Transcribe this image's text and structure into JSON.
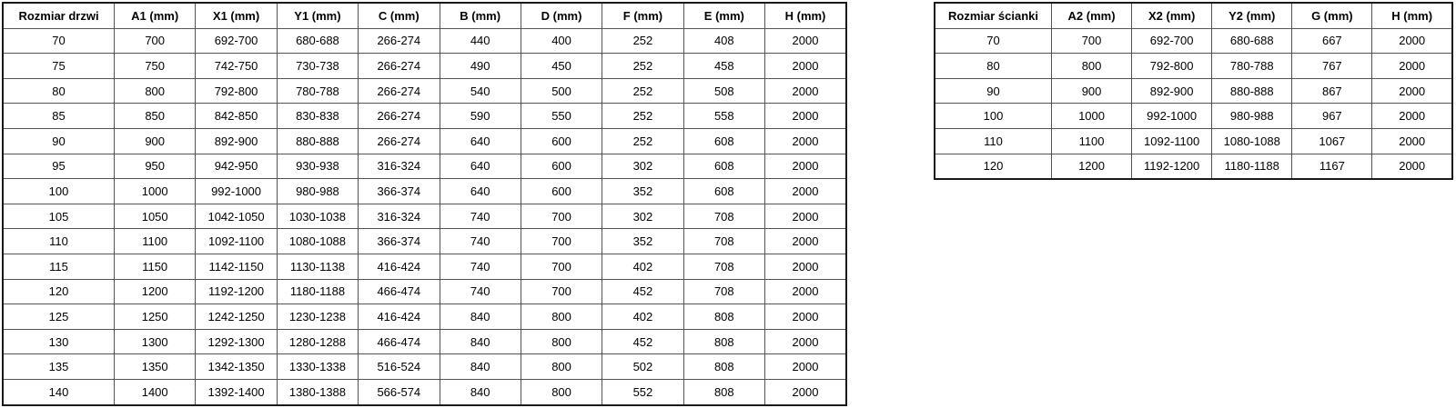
{
  "door_table": {
    "name": "door-size-table",
    "headers": [
      "Rozmiar drzwi",
      "A1 (mm)",
      "X1 (mm)",
      "Y1 (mm)",
      "C (mm)",
      "B (mm)",
      "D (mm)",
      "F (mm)",
      "E (mm)",
      "H (mm)"
    ],
    "rows": [
      [
        "70",
        "700",
        "692-700",
        "680-688",
        "266-274",
        "440",
        "400",
        "252",
        "408",
        "2000"
      ],
      [
        "75",
        "750",
        "742-750",
        "730-738",
        "266-274",
        "490",
        "450",
        "252",
        "458",
        "2000"
      ],
      [
        "80",
        "800",
        "792-800",
        "780-788",
        "266-274",
        "540",
        "500",
        "252",
        "508",
        "2000"
      ],
      [
        "85",
        "850",
        "842-850",
        "830-838",
        "266-274",
        "590",
        "550",
        "252",
        "558",
        "2000"
      ],
      [
        "90",
        "900",
        "892-900",
        "880-888",
        "266-274",
        "640",
        "600",
        "252",
        "608",
        "2000"
      ],
      [
        "95",
        "950",
        "942-950",
        "930-938",
        "316-324",
        "640",
        "600",
        "302",
        "608",
        "2000"
      ],
      [
        "100",
        "1000",
        "992-1000",
        "980-988",
        "366-374",
        "640",
        "600",
        "352",
        "608",
        "2000"
      ],
      [
        "105",
        "1050",
        "1042-1050",
        "1030-1038",
        "316-324",
        "740",
        "700",
        "302",
        "708",
        "2000"
      ],
      [
        "110",
        "1100",
        "1092-1100",
        "1080-1088",
        "366-374",
        "740",
        "700",
        "352",
        "708",
        "2000"
      ],
      [
        "115",
        "1150",
        "1142-1150",
        "1130-1138",
        "416-424",
        "740",
        "700",
        "402",
        "708",
        "2000"
      ],
      [
        "120",
        "1200",
        "1192-1200",
        "1180-1188",
        "466-474",
        "740",
        "700",
        "452",
        "708",
        "2000"
      ],
      [
        "125",
        "1250",
        "1242-1250",
        "1230-1238",
        "416-424",
        "840",
        "800",
        "402",
        "808",
        "2000"
      ],
      [
        "130",
        "1300",
        "1292-1300",
        "1280-1288",
        "466-474",
        "840",
        "800",
        "452",
        "808",
        "2000"
      ],
      [
        "135",
        "1350",
        "1342-1350",
        "1330-1338",
        "516-524",
        "840",
        "800",
        "502",
        "808",
        "2000"
      ],
      [
        "140",
        "1400",
        "1392-1400",
        "1380-1388",
        "566-574",
        "840",
        "800",
        "552",
        "808",
        "2000"
      ]
    ]
  },
  "wall_table": {
    "name": "wall-size-table",
    "headers": [
      "Rozmiar ścianki",
      "A2 (mm)",
      "X2 (mm)",
      "Y2 (mm)",
      "G (mm)",
      "H (mm)"
    ],
    "rows": [
      [
        "70",
        "700",
        "692-700",
        "680-688",
        "667",
        "2000"
      ],
      [
        "80",
        "800",
        "792-800",
        "780-788",
        "767",
        "2000"
      ],
      [
        "90",
        "900",
        "892-900",
        "880-888",
        "867",
        "2000"
      ],
      [
        "100",
        "1000",
        "992-1000",
        "980-988",
        "967",
        "2000"
      ],
      [
        "110",
        "1100",
        "1092-1100",
        "1080-1088",
        "1067",
        "2000"
      ],
      [
        "120",
        "1200",
        "1192-1200",
        "1180-1188",
        "1167",
        "2000"
      ]
    ]
  },
  "colors": {
    "background": "#ffffff",
    "text": "#000000",
    "outer_border": "#1a1a1a",
    "inner_border": "#555555"
  }
}
